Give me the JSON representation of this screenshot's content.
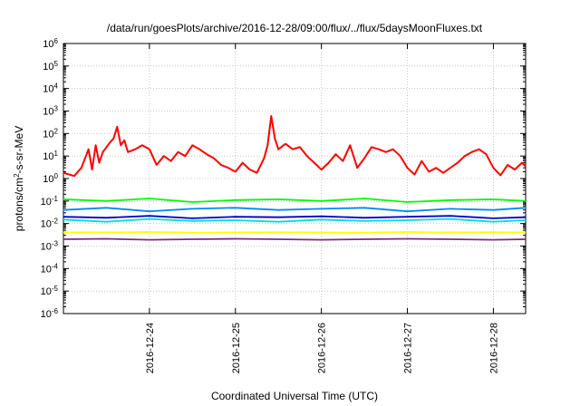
{
  "chart_data": {
    "type": "line",
    "title": "/data/run/goesPlots/archive/2016-12-28/09:00/flux/../flux/5daysMoonFluxes.txt",
    "xlabel": "Coordinated Universal Time (UTC)",
    "ylabel": {
      "prefix": "protons/cm",
      "sup": "2",
      "suffix": "-s-sr-MeV"
    },
    "yscale": "log",
    "ylim": [
      1e-06,
      1000000.0
    ],
    "y_ticks": [
      {
        "base": "10",
        "exp": "-6"
      },
      {
        "base": "10",
        "exp": "-5"
      },
      {
        "base": "10",
        "exp": "-4"
      },
      {
        "base": "10",
        "exp": "-3"
      },
      {
        "base": "10",
        "exp": "-2"
      },
      {
        "base": "10",
        "exp": "-1"
      },
      {
        "base": "10",
        "exp": "0"
      },
      {
        "base": "10",
        "exp": "1"
      },
      {
        "base": "10",
        "exp": "2"
      },
      {
        "base": "10",
        "exp": "3"
      },
      {
        "base": "10",
        "exp": "4"
      },
      {
        "base": "10",
        "exp": "5"
      },
      {
        "base": "10",
        "exp": "6"
      }
    ],
    "xlim": [
      "2016-12-23 00:00",
      "2016-12-28 09:00"
    ],
    "x_ticks": [
      "2016-12-24",
      "2016-12-25",
      "2016-12-26",
      "2016-12-27",
      "2016-12-28"
    ],
    "grid": true,
    "legend": "none",
    "series": [
      {
        "color": "#ff0000",
        "x": [
          "2016-12-23 00:00",
          "2016-12-23 03:00",
          "2016-12-23 05:00",
          "2016-12-23 07:00",
          "2016-12-23 08:00",
          "2016-12-23 09:00",
          "2016-12-23 10:00",
          "2016-12-23 11:00",
          "2016-12-23 13:00",
          "2016-12-23 14:00",
          "2016-12-23 15:00",
          "2016-12-23 16:00",
          "2016-12-23 17:00",
          "2016-12-23 18:00",
          "2016-12-23 20:00",
          "2016-12-23 22:00",
          "2016-12-24 00:00",
          "2016-12-24 02:00",
          "2016-12-24 04:00",
          "2016-12-24 06:00",
          "2016-12-24 08:00",
          "2016-12-24 10:00",
          "2016-12-24 12:00",
          "2016-12-24 14:00",
          "2016-12-24 16:00",
          "2016-12-24 18:00",
          "2016-12-24 20:00",
          "2016-12-24 22:00",
          "2016-12-25 00:00",
          "2016-12-25 02:00",
          "2016-12-25 04:00",
          "2016-12-25 06:00",
          "2016-12-25 08:00",
          "2016-12-25 09:00",
          "2016-12-25 10:00",
          "2016-12-25 11:00",
          "2016-12-25 12:00",
          "2016-12-25 14:00",
          "2016-12-25 16:00",
          "2016-12-25 18:00",
          "2016-12-25 20:00",
          "2016-12-25 22:00",
          "2016-12-26 00:00",
          "2016-12-26 02:00",
          "2016-12-26 04:00",
          "2016-12-26 06:00",
          "2016-12-26 08:00",
          "2016-12-26 10:00",
          "2016-12-26 12:00",
          "2016-12-26 14:00",
          "2016-12-26 16:00",
          "2016-12-26 18:00",
          "2016-12-26 20:00",
          "2016-12-26 22:00",
          "2016-12-27 00:00",
          "2016-12-27 02:00",
          "2016-12-27 04:00",
          "2016-12-27 06:00",
          "2016-12-27 08:00",
          "2016-12-27 10:00",
          "2016-12-27 12:00",
          "2016-12-27 14:00",
          "2016-12-27 16:00",
          "2016-12-27 18:00",
          "2016-12-27 20:00",
          "2016-12-27 22:00",
          "2016-12-28 00:00",
          "2016-12-28 02:00",
          "2016-12-28 04:00",
          "2016-12-28 06:00",
          "2016-12-28 08:00",
          "2016-12-28 09:00"
        ],
        "y": [
          1.8,
          1.3,
          3,
          20,
          2.5,
          30,
          5,
          15,
          40,
          60,
          200,
          30,
          50,
          15,
          20,
          30,
          20,
          4,
          10,
          6,
          15,
          10,
          30,
          20,
          12,
          8,
          4,
          3,
          2,
          5,
          2.5,
          1.8,
          8,
          30,
          600,
          60,
          20,
          35,
          20,
          25,
          10,
          5,
          2.5,
          5,
          12,
          6,
          30,
          3,
          8,
          25,
          20,
          15,
          20,
          10,
          3,
          1.5,
          6,
          2,
          3,
          1.8,
          3,
          5,
          10,
          15,
          20,
          12,
          3,
          1.4,
          4,
          2.5,
          5,
          3.5
        ]
      },
      {
        "color": "#00ff00",
        "x": [
          "2016-12-23 00:00",
          "2016-12-23 12:00",
          "2016-12-24 00:00",
          "2016-12-24 12:00",
          "2016-12-25 00:00",
          "2016-12-25 12:00",
          "2016-12-26 00:00",
          "2016-12-26 12:00",
          "2016-12-27 00:00",
          "2016-12-27 12:00",
          "2016-12-28 00:00",
          "2016-12-28 09:00"
        ],
        "y": [
          0.12,
          0.1,
          0.13,
          0.09,
          0.11,
          0.12,
          0.1,
          0.13,
          0.09,
          0.11,
          0.12,
          0.1
        ]
      },
      {
        "color": "#0088ff",
        "x": [
          "2016-12-23 00:00",
          "2016-12-23 12:00",
          "2016-12-24 00:00",
          "2016-12-24 12:00",
          "2016-12-25 00:00",
          "2016-12-25 12:00",
          "2016-12-26 00:00",
          "2016-12-26 12:00",
          "2016-12-27 00:00",
          "2016-12-27 12:00",
          "2016-12-28 00:00",
          "2016-12-28 09:00"
        ],
        "y": [
          0.04,
          0.05,
          0.035,
          0.045,
          0.05,
          0.04,
          0.045,
          0.05,
          0.035,
          0.045,
          0.04,
          0.05
        ]
      },
      {
        "color": "#00dddd",
        "x": [
          "2016-12-23 00:00",
          "2016-12-23 12:00",
          "2016-12-24 00:00",
          "2016-12-24 12:00",
          "2016-12-25 00:00",
          "2016-12-25 12:00",
          "2016-12-26 00:00",
          "2016-12-26 12:00",
          "2016-12-27 00:00",
          "2016-12-27 12:00",
          "2016-12-28 00:00",
          "2016-12-28 09:00"
        ],
        "y": [
          0.015,
          0.012,
          0.016,
          0.013,
          0.014,
          0.012,
          0.015,
          0.013,
          0.014,
          0.016,
          0.012,
          0.014
        ]
      },
      {
        "color": "#0000cc",
        "x": [
          "2016-12-23 00:00",
          "2016-12-23 12:00",
          "2016-12-24 00:00",
          "2016-12-24 12:00",
          "2016-12-25 00:00",
          "2016-12-25 12:00",
          "2016-12-26 00:00",
          "2016-12-26 12:00",
          "2016-12-27 00:00",
          "2016-12-27 12:00",
          "2016-12-28 00:00",
          "2016-12-28 09:00"
        ],
        "y": [
          0.02,
          0.018,
          0.022,
          0.017,
          0.02,
          0.019,
          0.021,
          0.018,
          0.02,
          0.022,
          0.017,
          0.019
        ]
      },
      {
        "color": "#ffff00",
        "x": [
          "2016-12-23 00:00",
          "2016-12-23 12:00",
          "2016-12-24 00:00",
          "2016-12-24 12:00",
          "2016-12-25 00:00",
          "2016-12-25 12:00",
          "2016-12-26 00:00",
          "2016-12-26 12:00",
          "2016-12-27 00:00",
          "2016-12-27 12:00",
          "2016-12-28 00:00",
          "2016-12-28 09:00"
        ],
        "y": [
          0.004,
          0.004,
          0.0042,
          0.0039,
          0.004,
          0.0041,
          0.004,
          0.0039,
          0.0042,
          0.004,
          0.0041,
          0.004
        ]
      },
      {
        "color": "#7a2a7a",
        "x": [
          "2016-12-23 00:00",
          "2016-12-23 12:00",
          "2016-12-24 00:00",
          "2016-12-24 12:00",
          "2016-12-25 00:00",
          "2016-12-25 12:00",
          "2016-12-26 00:00",
          "2016-12-26 12:00",
          "2016-12-27 00:00",
          "2016-12-27 12:00",
          "2016-12-28 00:00",
          "2016-12-28 09:00"
        ],
        "y": [
          0.002,
          0.0021,
          0.0019,
          0.002,
          0.0021,
          0.002,
          0.0019,
          0.002,
          0.0021,
          0.002,
          0.0019,
          0.002
        ]
      }
    ]
  }
}
